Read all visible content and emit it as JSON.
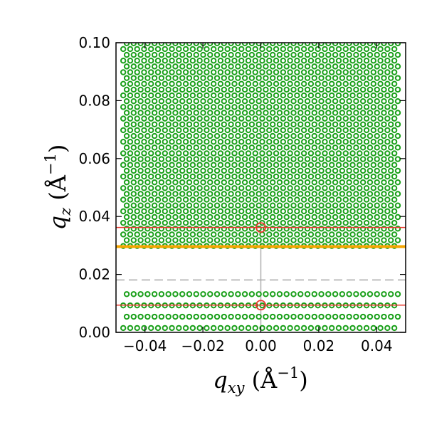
{
  "chart_data": {
    "type": "scatter",
    "title": "",
    "xlabel": {
      "symbol": "q",
      "sub": "xy",
      "unit_open": " (Å",
      "sup": "−1",
      "unit_close": ")"
    },
    "ylabel": {
      "symbol": "q",
      "sub": "z",
      "unit_open": " (Å",
      "sup": "−1",
      "unit_close": ")"
    },
    "xlim": [
      -0.05,
      0.05
    ],
    "ylim": [
      0.0,
      0.1
    ],
    "xticks": [
      -0.04,
      -0.02,
      0.0,
      0.02,
      0.04
    ],
    "xtick_labels": [
      "−0.04",
      "−0.02",
      "0.00",
      "0.02",
      "0.04"
    ],
    "yticks": [
      0.0,
      0.02,
      0.04,
      0.06,
      0.08,
      0.1
    ],
    "ytick_labels": [
      "0.00",
      "0.02",
      "0.04",
      "0.06",
      "0.08",
      "0.10"
    ],
    "grid": false,
    "lattice": {
      "color": "#1aa01a",
      "marker": "open-circle",
      "dx": 0.0024,
      "dy_upper": 0.002,
      "dy_lower": 0.0039,
      "upper_y_range": [
        0.0298,
        0.0995
      ],
      "lower_y_range": [
        0.0015,
        0.0133
      ],
      "x_range": [
        -0.0475,
        0.0475
      ]
    },
    "red_markers": [
      {
        "x": 0.0,
        "y": 0.0362
      },
      {
        "x": 0.0,
        "y": 0.0094
      }
    ],
    "horizontal_lines": [
      {
        "y": 0.0362,
        "color": "#e8382c",
        "style": "solid"
      },
      {
        "y": 0.0094,
        "color": "#e8382c",
        "style": "solid"
      },
      {
        "y": 0.0296,
        "color": "#f5a500",
        "style": "solid-thick"
      },
      {
        "y": 0.0181,
        "color": "#a8a8a8",
        "style": "dashed"
      }
    ],
    "vertical_lines": [
      {
        "x": 0.0,
        "color": "#b0b0b0",
        "style": "solid"
      }
    ]
  }
}
